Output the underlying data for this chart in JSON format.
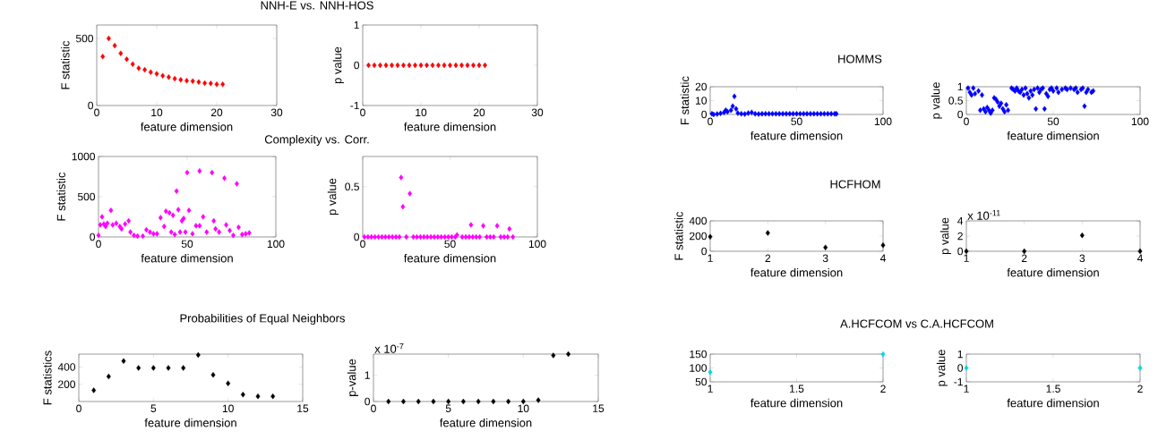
{
  "chart_data": [
    {
      "type": "scatter",
      "title": "NNH-E vs. NNH-HOS",
      "xlabel": "feature dimension",
      "ylabel": "F statistic",
      "color": "#ff0000",
      "marker": "diamond",
      "xlim": [
        0,
        30
      ],
      "ylim": [
        0,
        600
      ],
      "xticks": [
        0,
        10,
        20,
        30
      ],
      "yticks": [
        0,
        500
      ],
      "x": [
        1,
        2,
        3,
        4,
        5,
        6,
        7,
        8,
        9,
        10,
        11,
        12,
        13,
        14,
        15,
        16,
        17,
        18,
        19,
        20,
        21
      ],
      "values": [
        365,
        500,
        446,
        389,
        345,
        308,
        278,
        266,
        249,
        236,
        222,
        212,
        200,
        192,
        185,
        182,
        175,
        167,
        165,
        158,
        158
      ]
    },
    {
      "type": "scatter",
      "xlabel": "feature dimension",
      "ylabel": "p value",
      "color": "#ff0000",
      "marker": "diamond",
      "xlim": [
        0,
        30
      ],
      "ylim": [
        -1,
        1
      ],
      "xticks": [
        0,
        10,
        20,
        30
      ],
      "yticks": [
        -1,
        0,
        1
      ],
      "x": [
        1,
        2,
        3,
        4,
        5,
        6,
        7,
        8,
        9,
        10,
        11,
        12,
        13,
        14,
        15,
        16,
        17,
        18,
        19,
        20,
        21
      ],
      "values": [
        0,
        0,
        0,
        0,
        0,
        0,
        0,
        0,
        0,
        0,
        0,
        0,
        0,
        0,
        0,
        0,
        0,
        0,
        0,
        0,
        0
      ]
    },
    {
      "type": "scatter",
      "title": "Complexity vs. Corr.",
      "xlabel": "feature dimension",
      "ylabel": "F statistic",
      "color": "#ff00ff",
      "marker": "diamond",
      "xlim": [
        0,
        100
      ],
      "ylim": [
        0,
        1000
      ],
      "xticks": [
        0,
        50,
        100
      ],
      "yticks": [
        0,
        500,
        1000
      ],
      "x": [
        0,
        1,
        2,
        3,
        4,
        5,
        7,
        8,
        10,
        12,
        13,
        15,
        17,
        18,
        20,
        22,
        25,
        27,
        29,
        31,
        33,
        35,
        37,
        38,
        40,
        41,
        42,
        43,
        44,
        45,
        46,
        47,
        48,
        49,
        50,
        51,
        53,
        55,
        57,
        57,
        59,
        61,
        64,
        65,
        66,
        68,
        71,
        72,
        74,
        76,
        78,
        79,
        81,
        83,
        85
      ],
      "values": [
        20,
        150,
        250,
        160,
        130,
        170,
        330,
        150,
        170,
        130,
        100,
        160,
        200,
        60,
        20,
        10,
        10,
        90,
        60,
        40,
        40,
        240,
        130,
        320,
        300,
        60,
        270,
        30,
        570,
        340,
        60,
        200,
        230,
        60,
        800,
        330,
        40,
        140,
        820,
        140,
        250,
        60,
        800,
        200,
        100,
        60,
        730,
        150,
        80,
        20,
        660,
        120,
        30,
        40,
        50
      ]
    },
    {
      "type": "scatter",
      "xlabel": "feature dimension",
      "ylabel": "p value",
      "color": "#ff00ff",
      "marker": "diamond",
      "xlim": [
        0,
        100
      ],
      "ylim": [
        0,
        0.8
      ],
      "xticks": [
        0,
        50,
        100
      ],
      "yticks": [
        0,
        0.5
      ],
      "x": [
        1,
        3,
        5,
        7,
        9,
        11,
        13,
        15,
        17,
        19,
        21,
        22,
        23,
        25,
        27,
        29,
        31,
        33,
        35,
        37,
        39,
        41,
        43,
        45,
        47,
        49,
        51,
        53,
        54,
        57,
        59,
        61,
        62,
        63,
        65,
        67,
        69,
        71,
        73,
        75,
        77,
        79,
        81,
        83,
        84,
        86
      ],
      "values": [
        0,
        0,
        0,
        0,
        0,
        0,
        0,
        0,
        0,
        0,
        0,
        0.59,
        0.3,
        0,
        0.43,
        0,
        0,
        0,
        0,
        0,
        0,
        0,
        0,
        0,
        0,
        0,
        0,
        0,
        0.02,
        0,
        0,
        0,
        0.12,
        0,
        0,
        0,
        0.11,
        0,
        0,
        0,
        0.11,
        0,
        0,
        0,
        0.08,
        0
      ]
    },
    {
      "type": "scatter",
      "title": "Probabilities of Equal Neighbors",
      "xlabel": "feature dimension",
      "ylabel": "F statistics",
      "color": "#000000",
      "marker": "diamond",
      "xlim": [
        0,
        15
      ],
      "ylim": [
        0,
        550
      ],
      "xticks": [
        0,
        5,
        10,
        15
      ],
      "yticks": [
        200,
        400
      ],
      "x": [
        1,
        2,
        3,
        4,
        5,
        6,
        7,
        8,
        9,
        10,
        11,
        12,
        13
      ],
      "values": [
        130,
        290,
        470,
        390,
        390,
        390,
        390,
        540,
        310,
        210,
        80,
        60,
        60
      ]
    },
    {
      "type": "scatter",
      "xlabel": "feature dimension",
      "ylabel": "p-value",
      "annotations": [
        "x 10$^{-7}$"
      ],
      "color": "#000000",
      "marker": "diamond",
      "xlim": [
        0,
        15
      ],
      "ylim": [
        0,
        1.8
      ],
      "xticks": [
        0,
        5,
        10,
        15
      ],
      "yticks": [
        0,
        1
      ],
      "x": [
        1,
        2,
        3,
        4,
        5,
        6,
        7,
        8,
        9,
        10,
        11,
        12,
        13
      ],
      "values": [
        0,
        0,
        0,
        0,
        0,
        0,
        0,
        0,
        0,
        0,
        0.05,
        1.75,
        1.8
      ]
    },
    {
      "type": "scatter",
      "title": "HOMMS",
      "xlabel": "feature dimension",
      "ylabel": "F statistic",
      "color": "#0000ff",
      "marker": "diamond",
      "xlim": [
        0,
        100
      ],
      "ylim": [
        0,
        20
      ],
      "xticks": [
        0,
        50,
        100
      ],
      "yticks": [
        0,
        10,
        20
      ],
      "x": [
        1,
        2,
        4,
        6,
        8,
        9,
        10,
        12,
        13,
        14,
        15,
        16,
        18,
        20,
        22,
        24,
        26,
        28,
        30,
        32,
        34,
        36,
        38,
        40,
        42,
        44,
        46,
        48,
        50,
        52,
        54,
        56,
        58,
        60,
        62,
        64,
        66,
        68,
        70,
        72,
        73
      ],
      "values": [
        0.5,
        0,
        0.3,
        0.8,
        1.5,
        3,
        2,
        3,
        6,
        13,
        4,
        1,
        0.5,
        0.3,
        1,
        1.5,
        0.5,
        0.3,
        0.5,
        0.5,
        0.5,
        0.5,
        0.5,
        0.5,
        0.5,
        0.5,
        0.5,
        0.5,
        0.5,
        0.5,
        0.5,
        0.5,
        0.5,
        0.5,
        0.5,
        0.5,
        0.5,
        0.5,
        0.5,
        0.5,
        0.5
      ]
    },
    {
      "type": "scatter",
      "xlabel": "feature dimension",
      "ylabel": "p value",
      "color": "#0000ff",
      "marker": "diamond",
      "xlim": [
        0,
        100
      ],
      "ylim": [
        0,
        1
      ],
      "xticks": [
        0,
        50,
        100
      ],
      "yticks": [
        0,
        0.5,
        1
      ],
      "x": [
        1,
        2,
        3,
        4,
        5,
        7,
        8,
        9,
        10,
        11,
        12,
        13,
        14,
        15,
        16,
        17,
        18,
        19,
        20,
        21,
        22,
        23,
        24,
        26,
        27,
        28,
        29,
        30,
        31,
        32,
        33,
        34,
        35,
        36,
        37,
        38,
        39,
        40,
        41,
        42,
        43,
        44,
        45,
        46,
        47,
        48,
        49,
        50,
        52,
        53,
        55,
        57,
        58,
        60,
        62,
        63,
        64,
        66,
        67,
        68,
        69,
        70,
        72,
        73
      ],
      "values": [
        0.95,
        0.8,
        0.7,
        0.95,
        0.75,
        0.85,
        0.15,
        0.7,
        0.2,
        0.1,
        0.25,
        0.15,
        0.05,
        0.15,
        0.6,
        0.55,
        0.45,
        0.3,
        0.4,
        0.2,
        0.1,
        0.35,
        0.15,
        0.95,
        0.9,
        0.85,
        0.95,
        0.85,
        0.8,
        0.9,
        0.7,
        0.95,
        0.75,
        0.6,
        0.85,
        0.7,
        0.9,
        0.2,
        0.95,
        0.8,
        0.9,
        0.95,
        0.2,
        0.75,
        0.65,
        0.9,
        0.95,
        0.85,
        0.95,
        0.8,
        0.9,
        0.95,
        0.9,
        0.95,
        0.9,
        0.95,
        0.8,
        0.9,
        0.95,
        0.3,
        0.8,
        0.9,
        0.8,
        0.85
      ]
    },
    {
      "type": "scatter",
      "title": "HCFHOM",
      "xlabel": "feature dimension",
      "ylabel": "F statistic",
      "color": "#000000",
      "marker": "diamond",
      "xlim": [
        1,
        4
      ],
      "ylim": [
        0,
        400
      ],
      "xticks": [
        1,
        2,
        3,
        4
      ],
      "yticks": [
        0,
        200,
        400
      ],
      "x": [
        1,
        2,
        3,
        4
      ],
      "values": [
        190,
        240,
        50,
        80
      ]
    },
    {
      "type": "scatter",
      "xlabel": "feature dimension",
      "ylabel": "p value",
      "annotations": [
        "x 10$^{-11}$"
      ],
      "color": "#000000",
      "marker": "diamond",
      "xlim": [
        1,
        4
      ],
      "ylim": [
        0,
        4
      ],
      "xticks": [
        1,
        2,
        3,
        4
      ],
      "yticks": [
        0,
        2,
        4
      ],
      "x": [
        1,
        2,
        3,
        4
      ],
      "values": [
        0,
        0,
        2.1,
        0
      ]
    },
    {
      "type": "scatter",
      "title": "A.HCFCOM vs C.A.HCFCOM",
      "xlabel": "feature dimension",
      "color": "#00d8e8",
      "marker": "diamond",
      "xlim": [
        1,
        2
      ],
      "ylim": [
        50,
        150
      ],
      "xticks": [
        1,
        1.5,
        2
      ],
      "yticks": [
        50,
        100,
        150
      ],
      "x": [
        1,
        2
      ],
      "values": [
        85,
        150
      ]
    },
    {
      "type": "scatter",
      "xlabel": "feature dimension",
      "ylabel": "p value",
      "color": "#00d8e8",
      "marker": "diamond",
      "xlim": [
        1,
        2
      ],
      "ylim": [
        -1,
        1
      ],
      "xticks": [
        1,
        1.5,
        2
      ],
      "yticks": [
        -1,
        0,
        1
      ],
      "x": [
        1,
        2
      ],
      "values": [
        0,
        0
      ]
    }
  ]
}
